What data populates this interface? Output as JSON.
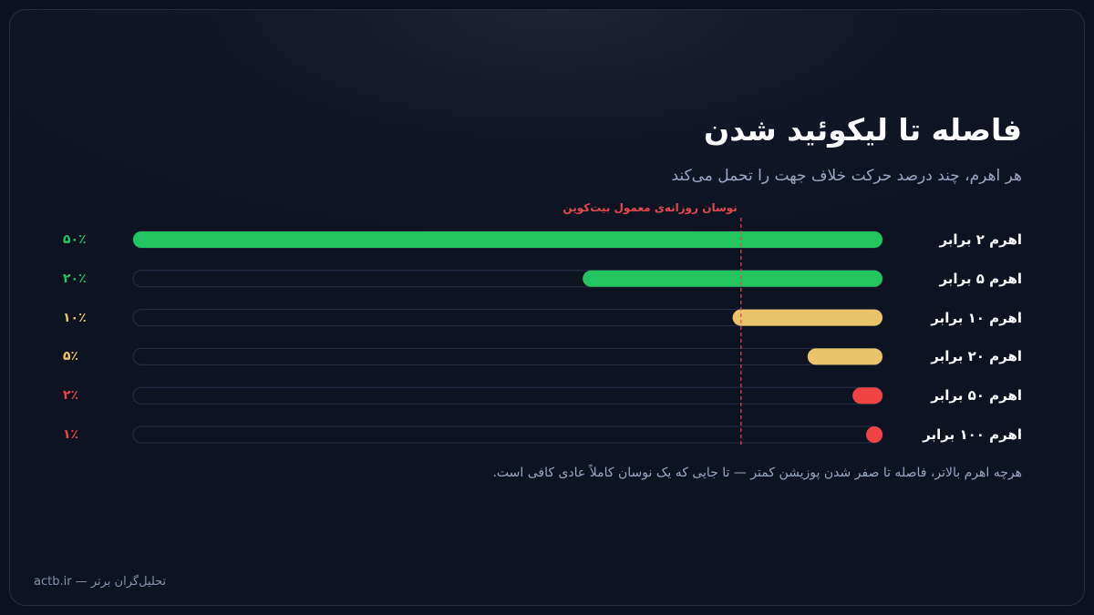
{
  "title": "فاصله تا لیکوئید شدن",
  "subtitle": "هر اهرم، چند درصد حرکت خلاف جهت را تحمل می‌کند",
  "note": "هرچه اهرم بالاتر، فاصله تا صفر شدن پوزیشن کمتر — تا جایی که یک نوسان کاملاً عادی کافی است.",
  "footer": "actb.ir — تحلیل‌گران برتر",
  "colors": {
    "green": "#22c55e",
    "yellow": "#e9c46a",
    "red": "#ef4444",
    "reference_line": "#e5484d"
  },
  "chart_data": {
    "type": "bar",
    "orientation": "horizontal-rtl",
    "categories": [
      "اهرم ۲ برابر",
      "اهرم ۵ برابر",
      "اهرم ۱۰ برابر",
      "اهرم ۲۰ برابر",
      "اهرم ۵۰ برابر",
      "اهرم ۱۰۰ برابر"
    ],
    "values": [
      50,
      20,
      10,
      5,
      2,
      1
    ],
    "value_labels": [
      "۵۰٪",
      "۲۰٪",
      "۱۰٪",
      "۵٪",
      "۲٪",
      "۱٪"
    ],
    "bar_colors": [
      "green",
      "green",
      "yellow",
      "yellow",
      "red",
      "red"
    ],
    "xlim": [
      0,
      50
    ],
    "reference_line": {
      "value": 5,
      "label": "نوسان روزانه‌ی معمول بیت‌کوین"
    },
    "grid": false
  }
}
